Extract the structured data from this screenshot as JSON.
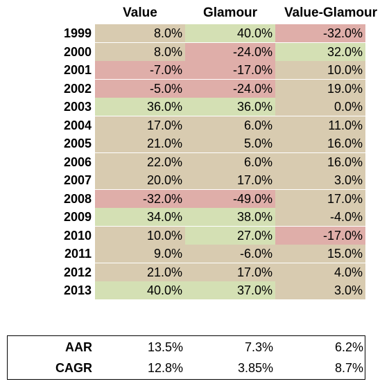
{
  "colors": {
    "green": "#d4e0b4",
    "tan": "#d8cbb0",
    "red": "#dfaea9"
  },
  "chart_data": {
    "type": "table",
    "columns": [
      "Value",
      "Glamour",
      "Value-Glamour"
    ],
    "rows": [
      {
        "year": "1999",
        "values": [
          "8.0%",
          "40.0%",
          "-32.0%"
        ],
        "tones": [
          "tan",
          "green",
          "red"
        ]
      },
      {
        "year": "2000",
        "values": [
          "8.0%",
          "-24.0%",
          "32.0%"
        ],
        "tones": [
          "tan",
          "red",
          "green"
        ]
      },
      {
        "year": "2001",
        "values": [
          "-7.0%",
          "-17.0%",
          "10.0%"
        ],
        "tones": [
          "red",
          "red",
          "tan"
        ]
      },
      {
        "year": "2002",
        "values": [
          "-5.0%",
          "-24.0%",
          "19.0%"
        ],
        "tones": [
          "red",
          "red",
          "tan"
        ]
      },
      {
        "year": "2003",
        "values": [
          "36.0%",
          "36.0%",
          "0.0%"
        ],
        "tones": [
          "green",
          "green",
          "tan"
        ]
      },
      {
        "year": "2004",
        "values": [
          "17.0%",
          "6.0%",
          "11.0%"
        ],
        "tones": [
          "tan",
          "tan",
          "tan"
        ]
      },
      {
        "year": "2005",
        "values": [
          "21.0%",
          "5.0%",
          "16.0%"
        ],
        "tones": [
          "tan",
          "tan",
          "tan"
        ]
      },
      {
        "year": "2006",
        "values": [
          "22.0%",
          "6.0%",
          "16.0%"
        ],
        "tones": [
          "tan",
          "tan",
          "tan"
        ]
      },
      {
        "year": "2007",
        "values": [
          "20.0%",
          "17.0%",
          "3.0%"
        ],
        "tones": [
          "tan",
          "tan",
          "tan"
        ]
      },
      {
        "year": "2008",
        "values": [
          "-32.0%",
          "-49.0%",
          "17.0%"
        ],
        "tones": [
          "red",
          "red",
          "tan"
        ]
      },
      {
        "year": "2009",
        "values": [
          "34.0%",
          "38.0%",
          "-4.0%"
        ],
        "tones": [
          "green",
          "green",
          "tan"
        ]
      },
      {
        "year": "2010",
        "values": [
          "10.0%",
          "27.0%",
          "-17.0%"
        ],
        "tones": [
          "tan",
          "green",
          "red"
        ]
      },
      {
        "year": "2011",
        "values": [
          "9.0%",
          "-6.0%",
          "15.0%"
        ],
        "tones": [
          "tan",
          "tan",
          "tan"
        ]
      },
      {
        "year": "2012",
        "values": [
          "21.0%",
          "17.0%",
          "4.0%"
        ],
        "tones": [
          "tan",
          "tan",
          "tan"
        ]
      },
      {
        "year": "2013",
        "values": [
          "40.0%",
          "37.0%",
          "3.0%"
        ],
        "tones": [
          "green",
          "green",
          "tan"
        ]
      }
    ],
    "summary": [
      {
        "label": "AAR",
        "values": [
          "13.5%",
          "7.3%",
          "6.2%"
        ]
      },
      {
        "label": "CAGR",
        "values": [
          "12.8%",
          "3.85%",
          "8.7%"
        ]
      }
    ]
  }
}
